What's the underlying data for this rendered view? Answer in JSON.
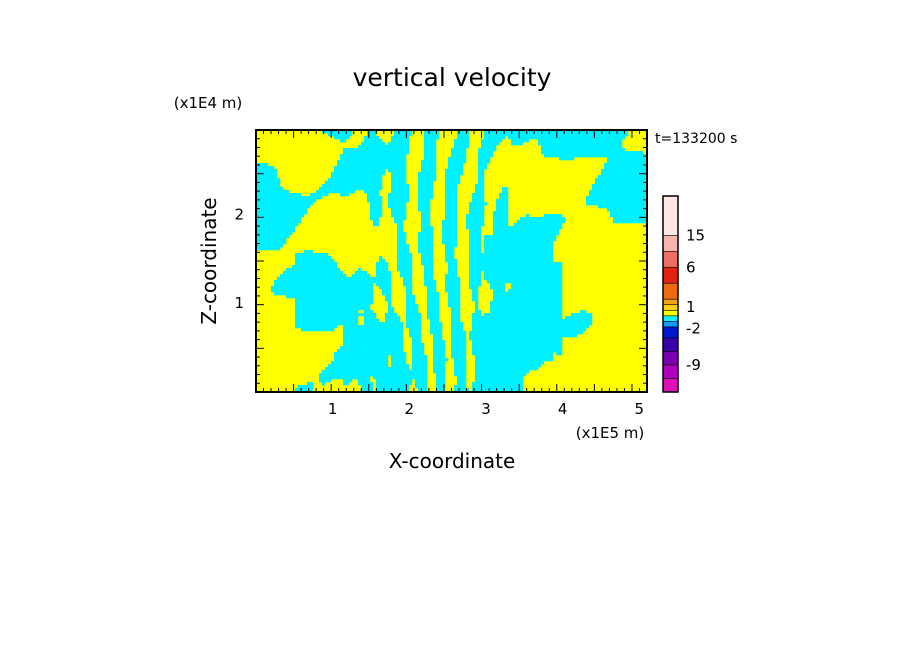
{
  "chart_data": {
    "type": "heatmap",
    "title": "vertical velocity",
    "time_label": "t=133200 s",
    "xlabel": "X-coordinate",
    "ylabel": "Z-coordinate",
    "x_unit": "(x1E5 m)",
    "y_unit": "(x1E4 m)",
    "x_ticks": [
      "1",
      "2",
      "3",
      "4",
      "5"
    ],
    "y_ticks": [
      "1",
      "2"
    ],
    "x_tick_values": [
      1,
      2,
      3,
      4,
      5
    ],
    "y_tick_values": [
      1,
      2
    ],
    "xlim": [
      0,
      5.1
    ],
    "ylim": [
      0,
      2.95
    ],
    "colorbar": {
      "tick_labels": [
        "15",
        "6",
        "1",
        "-2",
        "-9"
      ],
      "tick_values": [
        15,
        6,
        1,
        -2,
        -9
      ],
      "colors_top_to_bottom": [
        "#fde8e4",
        "#f6b4b0",
        "#ee6e66",
        "#e32310",
        "#ee6a10",
        "#f3a210",
        "#f7d20a",
        "#ffff00",
        "#0ff0ff",
        "#0f9cff",
        "#0018d0",
        "#3a00a8",
        "#7a00b0",
        "#b000c0",
        "#e010b8"
      ]
    },
    "dominant_colors": {
      "positive": "#ffff00",
      "negative": "#00f0ff"
    }
  }
}
